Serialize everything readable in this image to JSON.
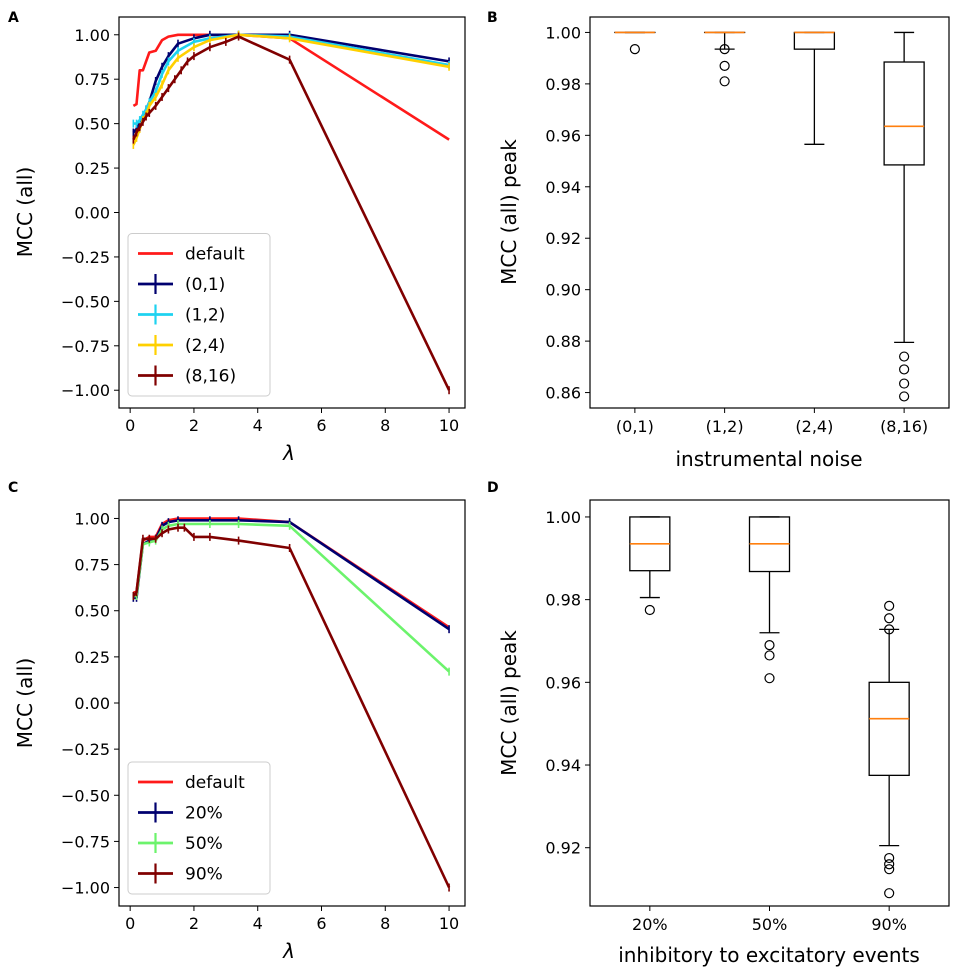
{
  "chart_data": [
    {
      "panel": "A",
      "type": "line",
      "title": "",
      "xlabel": "λ",
      "ylabel": "MCC (all)",
      "xlim": [
        -0.35,
        10.5
      ],
      "ylim": [
        -1.1,
        1.1
      ],
      "xticks": [
        0,
        2,
        4,
        6,
        8,
        10
      ],
      "xtick_labels": [
        "0",
        "2",
        "4",
        "6",
        "8",
        "10"
      ],
      "yticks": [
        -1.0,
        -0.75,
        -0.5,
        -0.25,
        0.0,
        0.25,
        0.5,
        0.75,
        1.0
      ],
      "ytick_labels": [
        "−1.00",
        "−0.75",
        "−0.50",
        "−0.25",
        "0.00",
        "0.25",
        "0.50",
        "0.75",
        "1.00"
      ],
      "legend_position": "lower-left",
      "series": [
        {
          "name": "default",
          "color": "#ff1a1a",
          "errorbars": false,
          "x": [
            0.1,
            0.2,
            0.3,
            0.4,
            0.6,
            0.8,
            1.0,
            1.2,
            1.5,
            1.8,
            2.5,
            3.4,
            5.0,
            10.0
          ],
          "y": [
            0.6,
            0.61,
            0.8,
            0.8,
            0.9,
            0.91,
            0.97,
            0.99,
            1.0,
            1.0,
            1.0,
            1.0,
            0.98,
            0.41
          ]
        },
        {
          "name": "(0,1)",
          "color": "#00006f",
          "errorbars": true,
          "x": [
            0.1,
            0.2,
            0.3,
            0.4,
            0.5,
            0.6,
            0.8,
            1.0,
            1.2,
            1.5,
            2.0,
            2.5,
            3.4,
            5.0,
            10.0
          ],
          "y": [
            0.45,
            0.47,
            0.5,
            0.53,
            0.58,
            0.62,
            0.74,
            0.82,
            0.88,
            0.95,
            0.98,
            1.0,
            1.0,
            1.0,
            0.85
          ]
        },
        {
          "name": "(1,2)",
          "color": "#1ed2f0",
          "errorbars": true,
          "x": [
            0.1,
            0.2,
            0.3,
            0.4,
            0.5,
            0.6,
            0.8,
            1.0,
            1.2,
            1.5,
            2.0,
            2.5,
            3.4,
            5.0,
            10.0
          ],
          "y": [
            0.5,
            0.5,
            0.52,
            0.55,
            0.58,
            0.62,
            0.68,
            0.78,
            0.85,
            0.91,
            0.96,
            0.98,
            1.0,
            0.99,
            0.83
          ]
        },
        {
          "name": "(2,4)",
          "color": "#ffd000",
          "errorbars": true,
          "x": [
            0.1,
            0.2,
            0.3,
            0.4,
            0.5,
            0.6,
            0.8,
            1.0,
            1.2,
            1.5,
            2.0,
            2.5,
            3.4,
            5.0,
            10.0
          ],
          "y": [
            0.38,
            0.42,
            0.47,
            0.52,
            0.55,
            0.6,
            0.65,
            0.72,
            0.8,
            0.87,
            0.93,
            0.97,
            1.0,
            0.98,
            0.82
          ]
        },
        {
          "name": "(8,16)",
          "color": "#800000",
          "errorbars": true,
          "x": [
            0.1,
            0.2,
            0.3,
            0.4,
            0.5,
            0.6,
            0.8,
            1.0,
            1.2,
            1.4,
            1.6,
            1.8,
            2.0,
            2.5,
            3.0,
            3.4,
            5.0,
            10.0
          ],
          "y": [
            0.41,
            0.45,
            0.48,
            0.51,
            0.54,
            0.56,
            0.6,
            0.65,
            0.7,
            0.75,
            0.8,
            0.85,
            0.88,
            0.93,
            0.96,
            0.99,
            0.86,
            -1.0
          ]
        }
      ]
    },
    {
      "panel": "B",
      "type": "box",
      "title": "",
      "xlabel": "instrumental noise",
      "ylabel": "MCC (all) peak",
      "ylim": [
        0.854,
        1.006
      ],
      "yticks": [
        0.86,
        0.88,
        0.9,
        0.92,
        0.94,
        0.96,
        0.98,
        1.0
      ],
      "ytick_labels": [
        "0.86",
        "0.88",
        "0.90",
        "0.92",
        "0.94",
        "0.96",
        "0.98",
        "1.00"
      ],
      "categories": [
        "(0,1)",
        "(1,2)",
        "(2,4)",
        "(8,16)"
      ],
      "boxes": [
        {
          "category": "(0,1)",
          "whisker_low": 1.0,
          "q1": 1.0,
          "median": 1.0,
          "q3": 1.0,
          "whisker_high": 1.0,
          "fliers": [
            0.9935
          ]
        },
        {
          "category": "(1,2)",
          "whisker_low": 0.9935,
          "q1": 1.0,
          "median": 1.0,
          "q3": 1.0,
          "whisker_high": 1.0,
          "fliers": [
            0.9935,
            0.987,
            0.981
          ]
        },
        {
          "category": "(2,4)",
          "whisker_low": 0.9565,
          "q1": 0.9935,
          "median": 1.0,
          "q3": 1.0,
          "whisker_high": 1.0,
          "fliers": []
        },
        {
          "category": "(8,16)",
          "whisker_low": 0.8795,
          "q1": 0.9485,
          "median": 0.9635,
          "q3": 0.9885,
          "whisker_high": 1.0,
          "fliers": [
            0.874,
            0.869,
            0.8635,
            0.8585
          ]
        }
      ]
    },
    {
      "panel": "C",
      "type": "line",
      "title": "",
      "xlabel": "λ",
      "ylabel": "MCC (all)",
      "xlim": [
        -0.35,
        10.5
      ],
      "ylim": [
        -1.1,
        1.1
      ],
      "xticks": [
        0,
        2,
        4,
        6,
        8,
        10
      ],
      "xtick_labels": [
        "0",
        "2",
        "4",
        "6",
        "8",
        "10"
      ],
      "yticks": [
        -1.0,
        -0.75,
        -0.5,
        -0.25,
        0.0,
        0.25,
        0.5,
        0.75,
        1.0
      ],
      "ytick_labels": [
        "−1.00",
        "−0.75",
        "−0.50",
        "−0.25",
        "0.00",
        "0.25",
        "0.50",
        "0.75",
        "1.00"
      ],
      "legend_position": "lower-left",
      "series": [
        {
          "name": "default",
          "color": "#ff1a1a",
          "errorbars": false,
          "x": [
            0.1,
            0.2,
            0.4,
            0.6,
            0.8,
            1.0,
            1.2,
            1.5,
            2.5,
            3.4,
            5.0,
            10.0
          ],
          "y": [
            0.6,
            0.6,
            0.88,
            0.9,
            0.9,
            0.97,
            0.99,
            1.0,
            1.0,
            1.0,
            0.98,
            0.41
          ]
        },
        {
          "name": "20%",
          "color": "#00006f",
          "errorbars": true,
          "x": [
            0.1,
            0.2,
            0.4,
            0.6,
            0.8,
            1.0,
            1.2,
            1.5,
            2.5,
            3.4,
            5.0,
            10.0
          ],
          "y": [
            0.57,
            0.57,
            0.86,
            0.88,
            0.89,
            0.96,
            0.98,
            0.99,
            0.99,
            0.99,
            0.98,
            0.4
          ]
        },
        {
          "name": "50%",
          "color": "#6cf36c",
          "errorbars": true,
          "x": [
            0.1,
            0.2,
            0.4,
            0.6,
            0.8,
            1.0,
            1.2,
            1.5,
            2.5,
            3.4,
            5.0,
            10.0
          ],
          "y": [
            0.58,
            0.58,
            0.86,
            0.87,
            0.88,
            0.94,
            0.96,
            0.97,
            0.97,
            0.97,
            0.96,
            0.17
          ]
        },
        {
          "name": "90%",
          "color": "#800000",
          "errorbars": true,
          "x": [
            0.1,
            0.2,
            0.4,
            0.6,
            0.8,
            1.0,
            1.2,
            1.5,
            1.7,
            2.0,
            2.5,
            3.4,
            5.0,
            10.0
          ],
          "y": [
            0.58,
            0.6,
            0.89,
            0.89,
            0.89,
            0.92,
            0.94,
            0.95,
            0.95,
            0.9,
            0.9,
            0.88,
            0.84,
            -1.0
          ]
        }
      ]
    },
    {
      "panel": "D",
      "type": "box",
      "title": "",
      "xlabel": "inhibitory to excitatory events",
      "ylabel": "MCC (all) peak",
      "ylim": [
        0.9059,
        1.0041
      ],
      "yticks": [
        0.92,
        0.94,
        0.96,
        0.98,
        1.0
      ],
      "ytick_labels": [
        "0.92",
        "0.94",
        "0.96",
        "0.98",
        "1.00"
      ],
      "categories": [
        "20%",
        "50%",
        "90%"
      ],
      "boxes": [
        {
          "category": "20%",
          "whisker_low": 0.9805,
          "q1": 0.987,
          "median": 0.9935,
          "q3": 1.0,
          "whisker_high": 1.0,
          "fliers": [
            0.9775
          ]
        },
        {
          "category": "50%",
          "whisker_low": 0.972,
          "q1": 0.9868,
          "median": 0.9935,
          "q3": 1.0,
          "whisker_high": 1.0,
          "fliers": [
            0.969,
            0.9665,
            0.961
          ]
        },
        {
          "category": "90%",
          "whisker_low": 0.9205,
          "q1": 0.9375,
          "median": 0.9512,
          "q3": 0.96,
          "whisker_high": 0.9728,
          "fliers": [
            0.9785,
            0.9755,
            0.9728,
            0.9175,
            0.916,
            0.9148,
            0.909
          ]
        }
      ]
    }
  ],
  "style": {
    "box_color": "#000000",
    "median_color": "#ff7f0e",
    "axis_color": "#000000",
    "background": "#ffffff"
  }
}
